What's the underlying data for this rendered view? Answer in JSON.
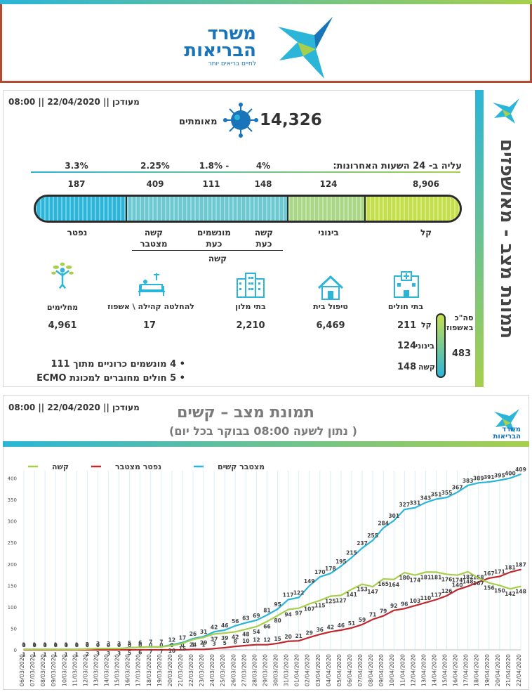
{
  "colors": {
    "blue": "#2bb5d8",
    "green": "#a7cf4c",
    "red": "#c0282d",
    "dark_blue": "#1a74ba",
    "brown": "#b34a32"
  },
  "header": {
    "logo_line1": "משרד",
    "logo_line2": "הבריאות",
    "logo_tagline": "לחיים בריאים יותר"
  },
  "panel1": {
    "updated": "מעודכן || 22/04/2020 || 08:00",
    "side_title": "תמונת מצב - מאושפזים",
    "confirmed_value": "14,326",
    "confirmed_label": "מאומתים",
    "increase_title": "עליה ב- 24 השעות האחרונות:",
    "increases": [
      {
        "key": "kasha_now",
        "value": "4%"
      },
      {
        "key": "ventilated",
        "value": "1.8% -"
      },
      {
        "key": "kasha_cum",
        "value": "2.25%"
      },
      {
        "key": "dead",
        "value": "3.3%"
      }
    ],
    "stats": [
      {
        "key": "kal",
        "value": "8,906",
        "label": "קל"
      },
      {
        "key": "beinoni",
        "value": "124",
        "label": "בינוני"
      },
      {
        "key": "kasha_now",
        "value": "148",
        "label": "קשה\nכעת"
      },
      {
        "key": "ventilated",
        "value": "111",
        "label": "מונשמים\nכעת"
      },
      {
        "key": "kasha_cum",
        "value": "409",
        "label": "קשה\nמצטבר"
      },
      {
        "key": "dead",
        "value": "187",
        "label": "נפטר"
      }
    ],
    "kasha_group_label": "קשה",
    "facilities": [
      {
        "key": "hospitals",
        "caption": "בתי חולים",
        "icon": "hospital-icon"
      },
      {
        "key": "home",
        "caption": "טיפול בית",
        "value": "6,469",
        "icon": "house-icon"
      },
      {
        "key": "hotels",
        "caption": "בתי מלון",
        "value": "2,210",
        "icon": "hotel-icon"
      },
      {
        "key": "community",
        "caption": "להחלטה קהילה \\ אשפוז",
        "value": "17",
        "icon": "hospital-bed-icon"
      },
      {
        "key": "recovered",
        "caption": "מחלימים",
        "value": "4,961",
        "icon": "recovered-person-icon"
      }
    ],
    "hospital_breakdown": [
      {
        "label": "קל",
        "value": "211"
      },
      {
        "label": "בינוני",
        "value": "124"
      },
      {
        "label": "קשה",
        "value": "148"
      }
    ],
    "total_hosp_label": "סה\"כ\nבאשפוז",
    "total_hosp_value": "483",
    "bullets": [
      "4 מונשמים כרוניים מתוך 111",
      "5 חולים מחוברים למכונת ECMO"
    ]
  },
  "panel2": {
    "updated": "מעודכן || 22/04/2020 || 08:00",
    "title": "תמונת מצב – קשים",
    "subtitle": "( נתון לשעה 08:00 בבוקר בכל יום)",
    "logo_line1": "משרד",
    "logo_line2": "הבריאות"
  },
  "chart_data": {
    "type": "line",
    "title": "",
    "xlabel": "",
    "ylabel": "",
    "ylim": [
      0,
      450
    ],
    "yticks": [
      0,
      50,
      100,
      150,
      200,
      250,
      300,
      350,
      400
    ],
    "x": [
      "06/03/2020",
      "07/03/2020",
      "08/03/2020",
      "09/03/2020",
      "10/03/2020",
      "11/03/2020",
      "12/03/2020",
      "13/03/2020",
      "14/03/2020",
      "15/03/2020",
      "16/03/2020",
      "17/03/2020",
      "18/03/2020",
      "19/03/2020",
      "20/03/2020",
      "21/03/2020",
      "22/03/2020",
      "23/03/2020",
      "24/03/2020",
      "25/03/2020",
      "26/03/2020",
      "27/03/2020",
      "28/03/2020",
      "29/03/2020",
      "30/03/2020",
      "31/03/2020",
      "01/04/2020",
      "02/04/2020",
      "03/04/2020",
      "04/04/2020",
      "05/04/2020",
      "06/04/2020",
      "07/04/2020",
      "08/04/2020",
      "09/04/2020",
      "10/04/2020",
      "11/04/2020",
      "12/04/2020",
      "13/04/2020",
      "14/04/2020",
      "15/04/2020",
      "16/04/2020",
      "17/04/2020",
      "18/04/2020",
      "19/04/2020",
      "20/04/2020",
      "21/04/2020",
      "22/04/2020"
    ],
    "legend": [
      "מצטבר קשים",
      "נפטר מצטבר",
      "קשה"
    ],
    "series": [
      {
        "name": "מצטבר קשים",
        "color": "#2bb5d8",
        "values": [
          1,
          1,
          1,
          1,
          1,
          1,
          2,
          3,
          3,
          3,
          5,
          6,
          7,
          7,
          12,
          17,
          26,
          31,
          42,
          46,
          56,
          63,
          69,
          81,
          95,
          117,
          122,
          149,
          170,
          178,
          195,
          215,
          237,
          255,
          284,
          301,
          327,
          331,
          343,
          351,
          355,
          367,
          383,
          389,
          391,
          395,
          400,
          409
        ]
      },
      {
        "name": "נפטר מצטבר",
        "color": "#c0282d",
        "values": [
          0,
          0,
          0,
          0,
          0,
          0,
          0,
          0,
          0,
          0,
          0,
          0,
          0,
          0,
          0,
          0,
          1,
          1,
          3,
          5,
          8,
          10,
          12,
          12,
          15,
          20,
          21,
          29,
          36,
          42,
          46,
          51,
          59,
          71,
          79,
          92,
          96,
          103,
          110,
          117,
          126,
          140,
          148,
          158,
          167,
          171,
          181,
          187
        ]
      },
      {
        "name": "קשה",
        "color": "#a7cf4c",
        "values": [
          1,
          1,
          1,
          1,
          1,
          1,
          2,
          3,
          3,
          3,
          5,
          6,
          7,
          7,
          10,
          15,
          24,
          29,
          37,
          39,
          42,
          48,
          54,
          66,
          80,
          94,
          97,
          107,
          115,
          125,
          127,
          141,
          153,
          147,
          165,
          164,
          180,
          174,
          181,
          181,
          176,
          174,
          182,
          167,
          156,
          150,
          142,
          148
        ]
      }
    ]
  }
}
